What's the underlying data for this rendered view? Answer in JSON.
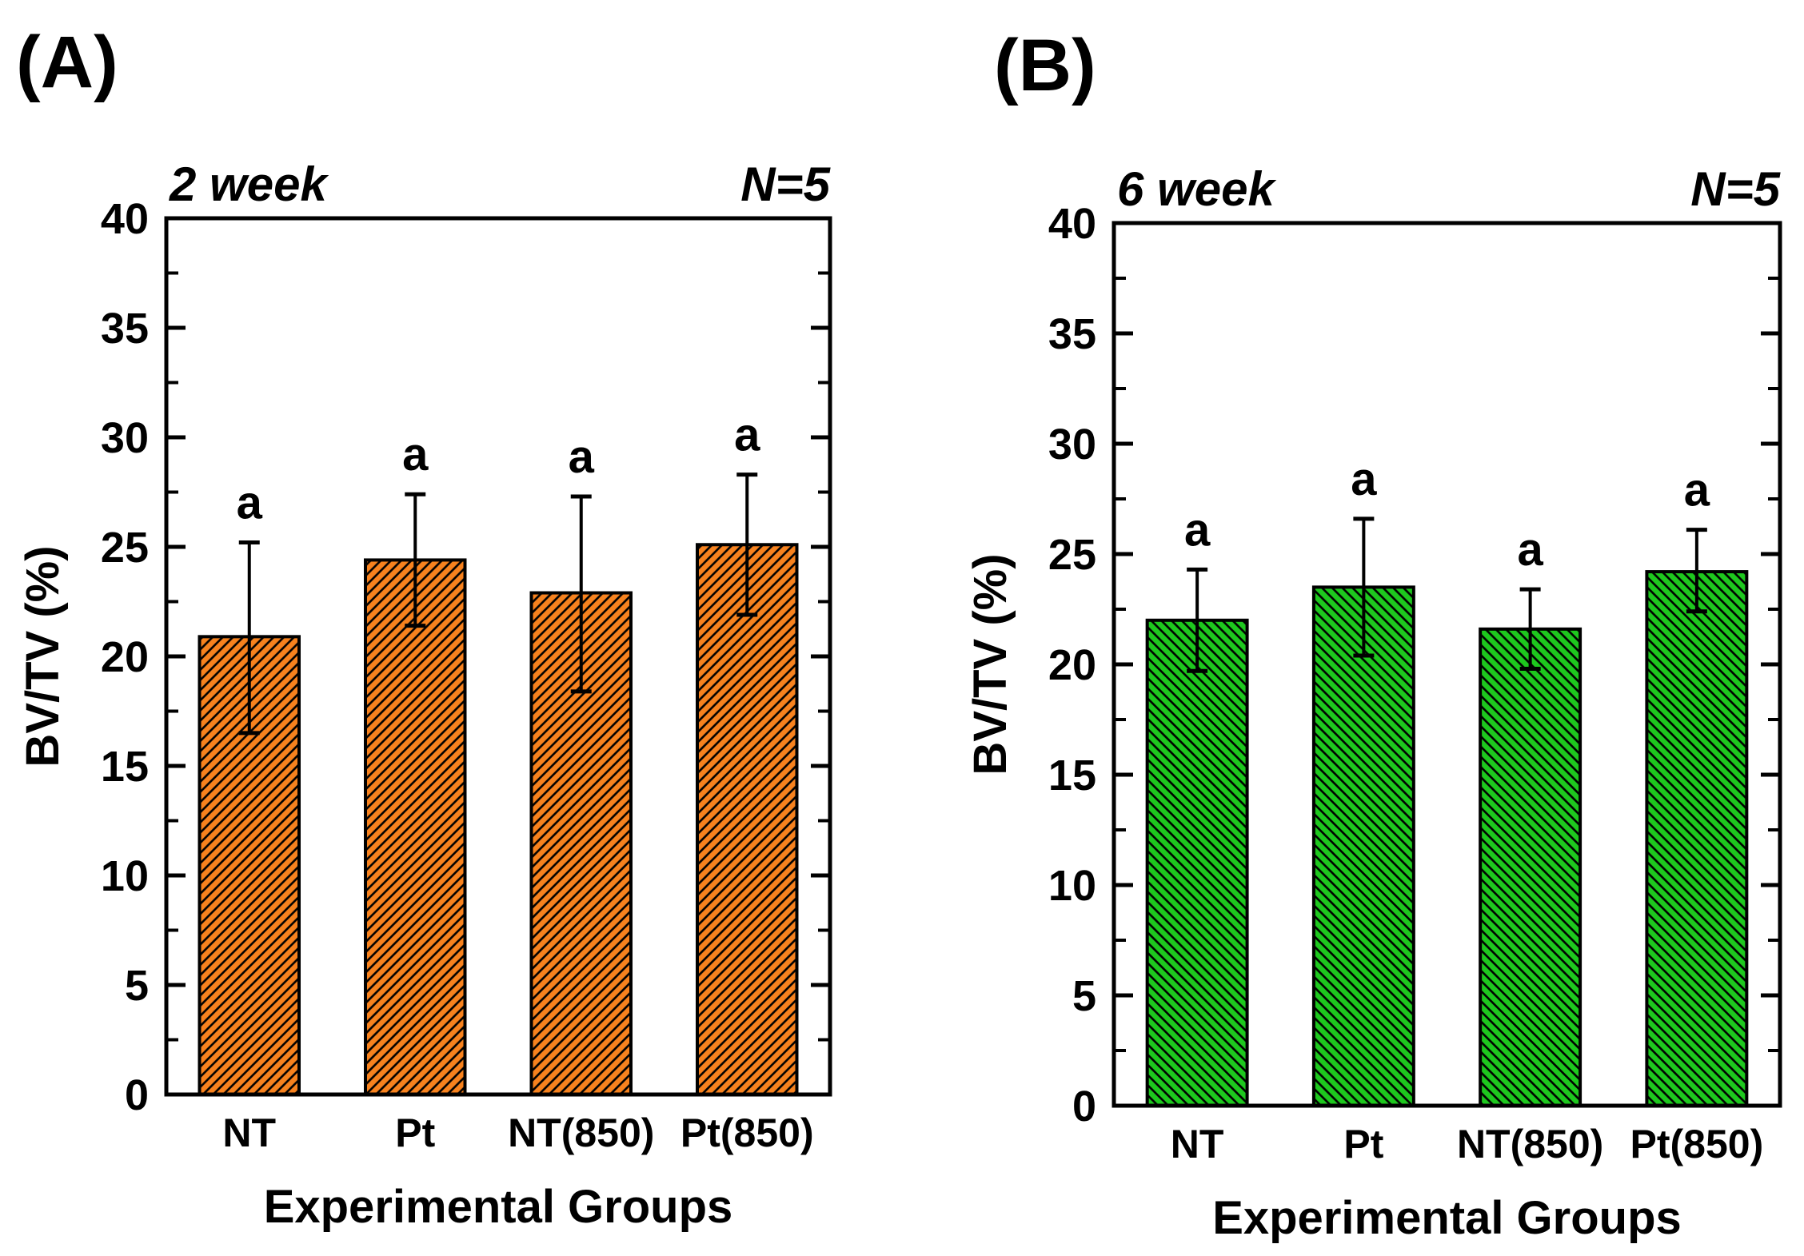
{
  "figure_title": "BV/TV micro-CT bar charts",
  "chart_data": [
    {
      "type": "bar",
      "panel": "(A)",
      "title": "2 week",
      "annotation": "N=5",
      "categories": [
        "NT",
        "Pt",
        "NT(850)",
        "Pt(850)"
      ],
      "values": [
        20.9,
        24.4,
        22.9,
        25.1
      ],
      "error_upper": [
        25.2,
        27.4,
        27.3,
        28.3
      ],
      "error_lower": [
        16.5,
        21.4,
        18.4,
        21.9
      ],
      "sig_labels": [
        "a",
        "a",
        "a",
        "a"
      ],
      "xlabel": "Experimental Groups",
      "ylabel": "BV/TV (%)",
      "ylim": [
        0,
        40
      ],
      "ytick_major": 5,
      "ytick_minor": 2.5,
      "grid": false,
      "legend": "none",
      "bar_color": "#F7821E",
      "hatch_direction": "/",
      "hatch_color": "#000000",
      "bar_outline_color": "#000000"
    },
    {
      "type": "bar",
      "panel": "(B)",
      "title": "6 week",
      "annotation": "N=5",
      "categories": [
        "NT",
        "Pt",
        "NT(850)",
        "Pt(850)"
      ],
      "values": [
        22.0,
        23.5,
        21.6,
        24.2
      ],
      "error_upper": [
        24.3,
        26.6,
        23.4,
        26.1
      ],
      "error_lower": [
        19.7,
        20.4,
        19.8,
        22.4
      ],
      "sig_labels": [
        "a",
        "a",
        "a",
        "a"
      ],
      "xlabel": "Experimental Groups",
      "ylabel": "BV/TV (%)",
      "ylim": [
        0,
        40
      ],
      "ytick_major": 5,
      "ytick_minor": 2.5,
      "grid": false,
      "legend": "none",
      "bar_color": "#1EC81E",
      "hatch_direction": "\\",
      "hatch_color": "#000000",
      "bar_outline_color": "#000000"
    }
  ]
}
